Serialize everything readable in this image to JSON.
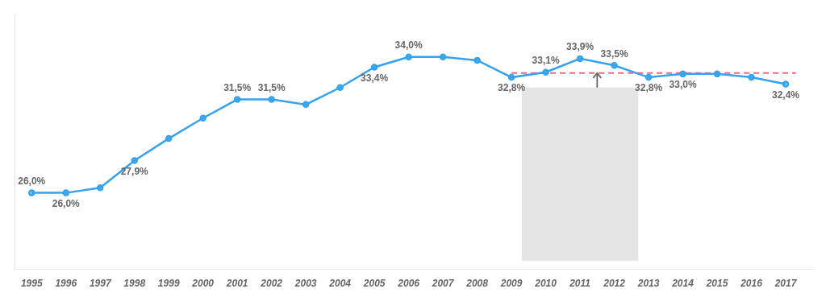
{
  "chart_data": {
    "type": "line",
    "x": [
      1995,
      1996,
      1997,
      1998,
      1999,
      2000,
      2001,
      2002,
      2003,
      2004,
      2005,
      2006,
      2007,
      2008,
      2009,
      2010,
      2011,
      2012,
      2013,
      2014,
      2015,
      2016,
      2017
    ],
    "values": [
      26.0,
      26.0,
      26.3,
      27.9,
      29.2,
      30.4,
      31.5,
      31.5,
      31.2,
      32.2,
      33.4,
      34.0,
      34.0,
      33.8,
      32.8,
      33.1,
      33.9,
      33.5,
      32.8,
      33.0,
      33.0,
      32.8,
      32.4
    ],
    "value_labels": [
      "26,0%",
      "26,0%",
      null,
      "27,9%",
      null,
      null,
      "31,5%",
      "31,5%",
      null,
      null,
      "33,4%",
      "34,0%",
      null,
      null,
      "32,8%",
      "33,1%",
      "33,9%",
      "33,5%",
      "32,8%",
      "33,0%",
      null,
      null,
      "32,4%"
    ],
    "marker": "circle",
    "xlim": [
      1994.5,
      2017.8
    ],
    "xticks": [
      1995,
      1996,
      1997,
      1998,
      1999,
      2000,
      2001,
      2002,
      2003,
      2004,
      2005,
      2006,
      2007,
      2008,
      2009,
      2010,
      2011,
      2012,
      2013,
      2014,
      2015,
      2016,
      2017
    ],
    "ylim": [
      21.5,
      36.5
    ],
    "tick_labels": "x",
    "grid": false,
    "average_line": {
      "x": [
        2009.0,
        2017.3
      ],
      "y": 33.05,
      "line_style": "dashed"
    },
    "box": {
      "x": [
        2009.3,
        2012.7
      ],
      "y": [
        22.0,
        32.2
      ]
    },
    "arrow": {
      "x": 2011.5,
      "y": [
        32.2,
        33.05
      ]
    }
  }
}
